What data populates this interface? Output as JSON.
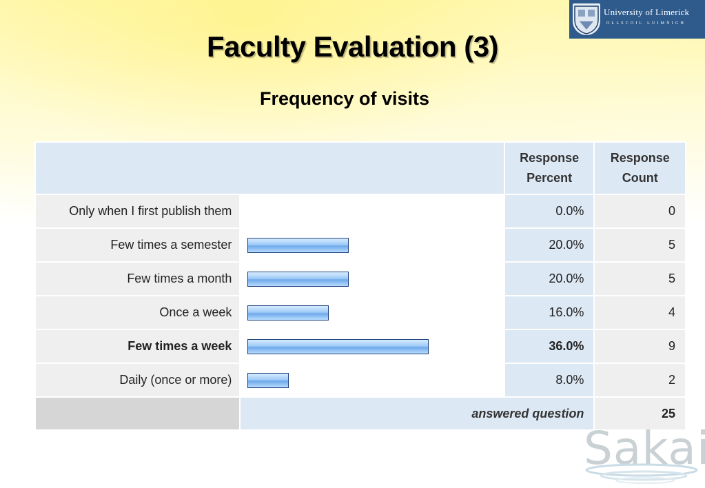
{
  "logo": {
    "name": "University of Limerick",
    "subtitle": "OLLSCOIL LUIMNIGH"
  },
  "slide": {
    "title": "Faculty Evaluation (3)",
    "subtitle": "Frequency of visits"
  },
  "table": {
    "headers": {
      "percent_line1": "Response",
      "percent_line2": "Percent",
      "count_line1": "Response",
      "count_line2": "Count"
    },
    "rows": [
      {
        "label": "Only when I first publish them",
        "percent_text": "0.0%",
        "percent": 0.0,
        "count": "0"
      },
      {
        "label": "Few times a semester",
        "percent_text": "20.0%",
        "percent": 20.0,
        "count": "5"
      },
      {
        "label": "Few times a month",
        "percent_text": "20.0%",
        "percent": 20.0,
        "count": "5"
      },
      {
        "label": "Once a week",
        "percent_text": "16.0%",
        "percent": 16.0,
        "count": "4"
      },
      {
        "label": "Few times a week",
        "percent_text": "36.0%",
        "percent": 36.0,
        "count": "9"
      },
      {
        "label": "Daily (once or more)",
        "percent_text": "8.0%",
        "percent": 8.0,
        "count": "2"
      }
    ],
    "footer": {
      "answered_label": "answered question",
      "answered_count": "25"
    }
  },
  "watermark": {
    "text": "Sakai"
  }
}
